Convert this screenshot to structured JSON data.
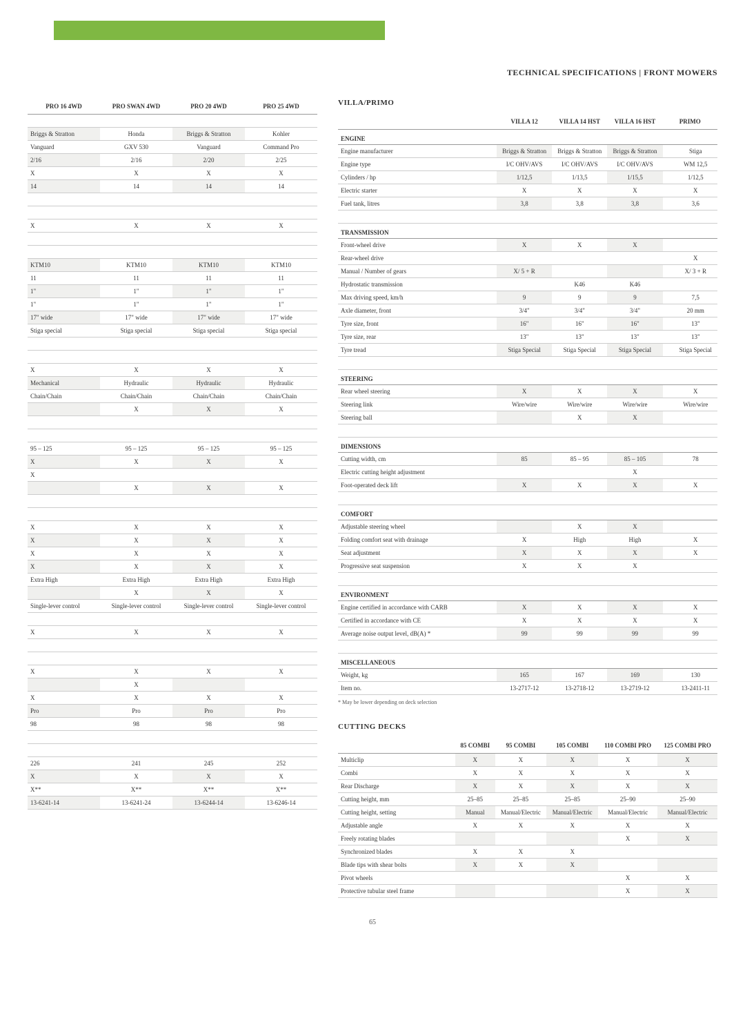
{
  "heading": "TECHNICAL SPECIFICATIONS | FRONT MOWERS",
  "pageNum": "65",
  "leftTable": {
    "headers": [
      "PRO 16 4WD",
      "PRO SWAN 4WD",
      "PRO 20 4WD",
      "PRO 25 4WD"
    ],
    "rows": [
      {
        "type": "blank"
      },
      {
        "alt": true,
        "cells": [
          "Briggs & Stratton",
          "Honda",
          "Briggs & Stratton",
          "Kohler"
        ]
      },
      {
        "cells": [
          "Vanguard",
          "GXV 530",
          "Vanguard",
          "Command Pro"
        ]
      },
      {
        "alt": true,
        "cells": [
          "2/16",
          "2/16",
          "2/20",
          "2/25"
        ]
      },
      {
        "cells": [
          "X",
          "X",
          "X",
          "X"
        ]
      },
      {
        "alt": true,
        "cells": [
          "14",
          "14",
          "14",
          "14"
        ]
      },
      {
        "type": "blank"
      },
      {
        "type": "blank"
      },
      {
        "cells": [
          "X",
          "X",
          "X",
          "X"
        ]
      },
      {
        "type": "blank"
      },
      {
        "type": "blank"
      },
      {
        "alt": true,
        "cells": [
          "KTM10",
          "KTM10",
          "KTM10",
          "KTM10"
        ]
      },
      {
        "cells": [
          "11",
          "11",
          "11",
          "11"
        ]
      },
      {
        "alt": true,
        "cells": [
          "1\"",
          "1\"",
          "1\"",
          "1\""
        ]
      },
      {
        "cells": [
          "1\"",
          "1\"",
          "1\"",
          "1\""
        ]
      },
      {
        "alt": true,
        "cells": [
          "17\" wide",
          "17\" wide",
          "17\" wide",
          "17\" wide"
        ]
      },
      {
        "cells": [
          "Stiga special",
          "Stiga special",
          "Stiga special",
          "Stiga special"
        ]
      },
      {
        "type": "blank"
      },
      {
        "type": "blank"
      },
      {
        "cells": [
          "X",
          "X",
          "X",
          "X"
        ]
      },
      {
        "alt": true,
        "cells": [
          "Mechanical",
          "Hydraulic",
          "Hydraulic",
          "Hydraulic"
        ]
      },
      {
        "cells": [
          "Chain/Chain",
          "Chain/Chain",
          "Chain/Chain",
          "Chain/Chain"
        ]
      },
      {
        "alt": true,
        "cells": [
          "",
          "X",
          "X",
          "X"
        ]
      },
      {
        "type": "blank"
      },
      {
        "type": "blank"
      },
      {
        "cells": [
          "95 – 125",
          "95 – 125",
          "95 – 125",
          "95 – 125"
        ]
      },
      {
        "alt": true,
        "cells": [
          "X",
          "X",
          "X",
          "X"
        ]
      },
      {
        "cells": [
          "X",
          "",
          "",
          ""
        ]
      },
      {
        "alt": true,
        "cells": [
          "",
          "X",
          "X",
          "X"
        ]
      },
      {
        "type": "blank"
      },
      {
        "type": "blank"
      },
      {
        "cells": [
          "X",
          "X",
          "X",
          "X"
        ]
      },
      {
        "alt": true,
        "cells": [
          "X",
          "X",
          "X",
          "X"
        ]
      },
      {
        "cells": [
          "X",
          "X",
          "X",
          "X"
        ]
      },
      {
        "alt": true,
        "cells": [
          "X",
          "X",
          "X",
          "X"
        ]
      },
      {
        "cells": [
          "Extra High",
          "Extra High",
          "Extra High",
          "Extra High"
        ]
      },
      {
        "alt": true,
        "cells": [
          "",
          "X",
          "X",
          "X"
        ]
      },
      {
        "cells": [
          "Single-lever control",
          "Single-lever control",
          "Single-lever control",
          "Single-lever control"
        ]
      },
      {
        "type": "blank"
      },
      {
        "cells": [
          "X",
          "X",
          "X",
          "X"
        ]
      },
      {
        "type": "blank"
      },
      {
        "type": "blank"
      },
      {
        "cells": [
          "X",
          "X",
          "X",
          "X"
        ]
      },
      {
        "alt": true,
        "cells": [
          "",
          "X",
          "",
          ""
        ]
      },
      {
        "cells": [
          "X",
          "X",
          "X",
          "X"
        ]
      },
      {
        "alt": true,
        "cells": [
          "Pro",
          "Pro",
          "Pro",
          "Pro"
        ]
      },
      {
        "cells": [
          "98",
          "98",
          "98",
          "98"
        ]
      },
      {
        "type": "blank"
      },
      {
        "type": "blank"
      },
      {
        "cells": [
          "226",
          "241",
          "245",
          "252"
        ]
      },
      {
        "alt": true,
        "cells": [
          "X",
          "X",
          "X",
          "X"
        ]
      },
      {
        "cells": [
          "X**",
          "X**",
          "X**",
          "X**"
        ]
      },
      {
        "alt": true,
        "cells": [
          "13-6241-14",
          "13-6241-24",
          "13-6244-14",
          "13-6246-14"
        ]
      }
    ]
  },
  "villa": {
    "title": "VILLA/PRIMO",
    "headers": [
      "",
      "VILLA 12",
      "VILLA 14 HST",
      "VILLA 16 HST",
      "PRIMO"
    ],
    "rows": [
      {
        "type": "cat",
        "label": "ENGINE"
      },
      {
        "alt": true,
        "cells": [
          "Engine manufacturer",
          "Briggs & Stratton",
          "Briggs & Stratton",
          "Briggs & Stratton",
          "Stiga"
        ]
      },
      {
        "cells": [
          "Engine type",
          "I/C OHV/AVS",
          "I/C OHV/AVS",
          "I/C OHV/AVS",
          "WM 12,5"
        ]
      },
      {
        "alt": true,
        "cells": [
          "Cylinders / hp",
          "1/12,5",
          "1/13,5",
          "1/15,5",
          "1/12,5"
        ]
      },
      {
        "cells": [
          "Electric starter",
          "X",
          "X",
          "X",
          "X"
        ]
      },
      {
        "alt": true,
        "cells": [
          "Fuel tank, litres",
          "3,8",
          "3,8",
          "3,8",
          "3,6"
        ]
      },
      {
        "type": "blank"
      },
      {
        "type": "cat",
        "label": "TRANSMISSION"
      },
      {
        "alt": true,
        "cells": [
          "Front-wheel drive",
          "X",
          "X",
          "X",
          ""
        ]
      },
      {
        "cells": [
          "Rear-wheel drive",
          "",
          "",
          "",
          "X"
        ]
      },
      {
        "alt": true,
        "cells": [
          "Manual / Number of gears",
          "X/ 5 + R",
          "",
          "",
          "X/ 3 + R"
        ]
      },
      {
        "cells": [
          "Hydrostatic transmission",
          "",
          "K46",
          "K46",
          ""
        ]
      },
      {
        "alt": true,
        "cells": [
          "Max driving speed, km/h",
          "9",
          "9",
          "9",
          "7,5"
        ]
      },
      {
        "cells": [
          "Axle diameter, front",
          "3/4\"",
          "3/4\"",
          "3/4\"",
          "20 mm"
        ]
      },
      {
        "alt": true,
        "cells": [
          "Tyre size, front",
          "16\"",
          "16\"",
          "16\"",
          "13\""
        ]
      },
      {
        "cells": [
          "Tyre size, rear",
          "13\"",
          "13\"",
          "13\"",
          "13\""
        ]
      },
      {
        "alt": true,
        "cells": [
          "Tyre tread",
          "Stiga Special",
          "Stiga Special",
          "Stiga Special",
          "Stiga Special"
        ]
      },
      {
        "type": "blank"
      },
      {
        "type": "cat",
        "label": "STEERING"
      },
      {
        "alt": true,
        "cells": [
          "Rear wheel steering",
          "X",
          "X",
          "X",
          "X"
        ]
      },
      {
        "cells": [
          "Steering link",
          "Wire/wire",
          "Wire/wire",
          "Wire/wire",
          "Wire/wire"
        ]
      },
      {
        "alt": true,
        "cells": [
          "Steering ball",
          "",
          "X",
          "X",
          ""
        ]
      },
      {
        "type": "blank"
      },
      {
        "type": "cat",
        "label": "DIMENSIONS"
      },
      {
        "alt": true,
        "cells": [
          "Cutting width, cm",
          "85",
          "85 – 95",
          "85 – 105",
          "78"
        ]
      },
      {
        "cells": [
          "Electric cutting  height adjustment",
          "",
          "",
          "X",
          ""
        ]
      },
      {
        "alt": true,
        "cells": [
          "Foot-operated deck lift",
          "X",
          "X",
          "X",
          "X"
        ]
      },
      {
        "type": "blank"
      },
      {
        "type": "cat",
        "label": "COMFORT"
      },
      {
        "alt": true,
        "cells": [
          "Adjustable steering wheel",
          "",
          "X",
          "X",
          ""
        ]
      },
      {
        "cells": [
          "Folding comfort seat with drainage",
          "X",
          "High",
          "High",
          "X"
        ]
      },
      {
        "alt": true,
        "cells": [
          "Seat adjustment",
          "X",
          "X",
          "X",
          "X"
        ]
      },
      {
        "cells": [
          "Progressive seat suspension",
          "X",
          "X",
          "X",
          ""
        ]
      },
      {
        "type": "blank"
      },
      {
        "type": "cat",
        "label": "ENVIRONMENT"
      },
      {
        "alt": true,
        "cells": [
          "Engine certified in accordance with CARB",
          "X",
          "X",
          "X",
          "X"
        ]
      },
      {
        "cells": [
          "Certified in accordance with CE",
          "X",
          "X",
          "X",
          "X"
        ]
      },
      {
        "alt": true,
        "cells": [
          "Average noise output level, dB(A) *",
          "99",
          "99",
          "99",
          "99"
        ]
      },
      {
        "type": "blank"
      },
      {
        "type": "cat",
        "label": "MISCELLANEOUS"
      },
      {
        "alt": true,
        "cells": [
          "Weight, kg",
          "165",
          "167",
          "169",
          "130"
        ]
      },
      {
        "cells": [
          "Item no.",
          "13-2717-12",
          "13-2718-12",
          "13-2719-12",
          "13-2411-11"
        ]
      }
    ],
    "footnote": "* May be lower depending on deck selection"
  },
  "cutting": {
    "title": "CUTTING DECKS",
    "headers": [
      "",
      "85 COMBI",
      "95 COMBI",
      "105 COMBI",
      "110 COMBI PRO",
      "125 COMBI PRO"
    ],
    "rows": [
      {
        "alt": true,
        "cells": [
          "Multiclip",
          "X",
          "X",
          "X",
          "X",
          "X"
        ]
      },
      {
        "cells": [
          "Combi",
          "X",
          "X",
          "X",
          "X",
          "X"
        ]
      },
      {
        "alt": true,
        "cells": [
          "Rear Discharge",
          "X",
          "X",
          "X",
          "X",
          "X"
        ]
      },
      {
        "cells": [
          "Cutting height, mm",
          "25–85",
          "25–85",
          "25–85",
          "25–90",
          "25–90"
        ]
      },
      {
        "alt": true,
        "cells": [
          "Cutting height, setting",
          "Manual",
          "Manual/Electric",
          "Manual/Electric",
          "Manual/Electric",
          "Manual/Electric"
        ]
      },
      {
        "cells": [
          "Adjustable angle",
          "X",
          "X",
          "X",
          "X",
          "X"
        ]
      },
      {
        "alt": true,
        "cells": [
          "Freely rotating blades",
          "",
          "",
          "",
          "X",
          "X"
        ]
      },
      {
        "cells": [
          "Synchronized blades",
          "X",
          "X",
          "X",
          "",
          ""
        ]
      },
      {
        "alt": true,
        "cells": [
          "Blade tips with shear bolts",
          "X",
          "X",
          "X",
          "",
          ""
        ]
      },
      {
        "cells": [
          "Pivot wheels",
          "",
          "",
          "",
          "X",
          "X"
        ]
      },
      {
        "alt": true,
        "cells": [
          "Protective tubular steel frame",
          "",
          "",
          "",
          "X",
          "X"
        ]
      }
    ]
  }
}
